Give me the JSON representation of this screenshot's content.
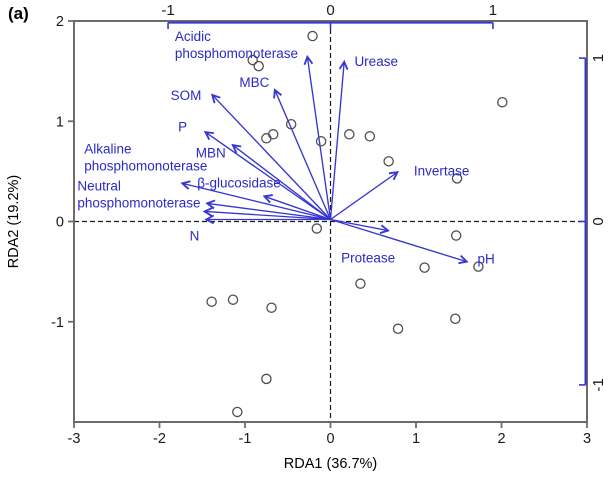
{
  "panel_label": "(a)",
  "colors": {
    "vector": "#3737cf",
    "vector_text": "#2a2ac8",
    "axis": "#6b6b6b",
    "secondary_axis": "#3737cf",
    "point_stroke": "#4f4f4f",
    "dash_line": "#1a1a1a",
    "tick_label": "#1a1a1a"
  },
  "chart_data": {
    "type": "scatter",
    "title": "(a)",
    "xlabel": "RDA1 (36.7%)",
    "ylabel": "RDA2 (19.2%)",
    "xlim": [
      -3,
      3
    ],
    "ylim": [
      -2,
      2
    ],
    "x_ticks": [
      -3,
      -2,
      -1,
      0,
      1,
      2,
      3
    ],
    "y_ticks": [
      2,
      1,
      0,
      -1
    ],
    "top_axis_ticks": [
      {
        "label": "-1",
        "x": -1.9
      },
      {
        "label": "0",
        "x": 0
      },
      {
        "label": "1",
        "x": 1.9
      }
    ],
    "top_axis_span": [
      -1.9,
      1.9
    ],
    "right_axis_ticks": [
      {
        "label": "1",
        "y": 1.63
      },
      {
        "label": "0",
        "y": 0
      },
      {
        "label": "-1",
        "y": -1.63
      }
    ],
    "right_axis_span": [
      -1.63,
      1.63
    ],
    "grid": false,
    "zero_lines": "dashed",
    "points": [
      [
        -0.91,
        1.61
      ],
      [
        -0.84,
        1.55
      ],
      [
        -0.21,
        1.85
      ],
      [
        -0.46,
        0.97
      ],
      [
        -0.75,
        0.83
      ],
      [
        -0.67,
        0.87
      ],
      [
        -0.11,
        0.8
      ],
      [
        0.22,
        0.87
      ],
      [
        0.46,
        0.85
      ],
      [
        2.01,
        1.19
      ],
      [
        0.68,
        0.6
      ],
      [
        1.48,
        0.43
      ],
      [
        -0.16,
        -0.07
      ],
      [
        1.47,
        -0.14
      ],
      [
        1.1,
        -0.46
      ],
      [
        1.73,
        -0.45
      ],
      [
        0.35,
        -0.62
      ],
      [
        1.46,
        -0.97
      ],
      [
        0.79,
        -1.07
      ],
      [
        -1.39,
        -0.8
      ],
      [
        -1.14,
        -0.78
      ],
      [
        -0.69,
        -0.86
      ],
      [
        -0.75,
        -1.57
      ],
      [
        -1.09,
        -1.9
      ]
    ],
    "vectors": [
      {
        "label": "Acidic phosphomonoterase",
        "lines": [
          "Acidic",
          "phosphomonoterase"
        ],
        "tip": [
          -0.27,
          1.64
        ],
        "label_pos": [
          -1.82,
          1.8
        ],
        "align": "start"
      },
      {
        "label": "Urease",
        "lines": [
          "Urease"
        ],
        "tip": [
          0.16,
          1.59
        ],
        "label_pos": [
          0.28,
          1.55
        ],
        "align": "start"
      },
      {
        "label": "MBC",
        "lines": [
          "MBC"
        ],
        "tip": [
          -0.65,
          1.31
        ],
        "label_pos": [
          -0.89,
          1.34
        ],
        "align": "middle"
      },
      {
        "label": "SOM",
        "lines": [
          "SOM"
        ],
        "tip": [
          -1.38,
          1.26
        ],
        "label_pos": [
          -1.69,
          1.21
        ],
        "align": "middle"
      },
      {
        "label": "P",
        "lines": [
          "P"
        ],
        "tip": [
          -1.46,
          0.89
        ],
        "label_pos": [
          -1.73,
          0.9
        ],
        "align": "middle"
      },
      {
        "label": "MBN",
        "lines": [
          "MBN"
        ],
        "tip": [
          -1.14,
          0.76
        ],
        "label_pos": [
          -1.4,
          0.64
        ],
        "align": "middle"
      },
      {
        "label": "β-glucosidase",
        "lines": [
          "β-glucosidase"
        ],
        "tip": [
          -0.77,
          0.25
        ],
        "label_pos": [
          -1.07,
          0.34
        ],
        "align": "middle"
      },
      {
        "label": "",
        "lines": [],
        "tip": [
          -1.73,
          0.38
        ],
        "label_pos": [
          0,
          0
        ],
        "align": "middle"
      },
      {
        "label": "Alkaline phosphomonoterase",
        "lines": [
          "Alkaline",
          "phosphomonoterase"
        ],
        "tip": [
          -1.44,
          0.18
        ],
        "label_pos": [
          -2.88,
          0.68
        ],
        "align": "start"
      },
      {
        "label": "Neutral phosphomonoterase",
        "lines": [
          "Neutral",
          "phosphomonoterase"
        ],
        "tip": [
          -1.47,
          0.1
        ],
        "label_pos": [
          -2.96,
          0.31
        ],
        "align": "start"
      },
      {
        "label": "N",
        "lines": [
          "N"
        ],
        "tip": [
          -1.45,
          0.02
        ],
        "label_pos": [
          -1.59,
          -0.19
        ],
        "align": "middle"
      },
      {
        "label": "Invertase",
        "lines": [
          "Invertase"
        ],
        "tip": [
          0.78,
          0.49
        ],
        "label_pos": [
          1.3,
          0.46
        ],
        "align": "middle"
      },
      {
        "label": "Protease",
        "lines": [
          "Protease"
        ],
        "tip": [
          0.67,
          -0.09
        ],
        "label_pos": [
          0.44,
          -0.41
        ],
        "align": "middle"
      },
      {
        "label": "pH",
        "lines": [
          "pH"
        ],
        "tip": [
          1.59,
          -0.4
        ],
        "label_pos": [
          1.82,
          -0.42
        ],
        "align": "middle"
      }
    ]
  }
}
